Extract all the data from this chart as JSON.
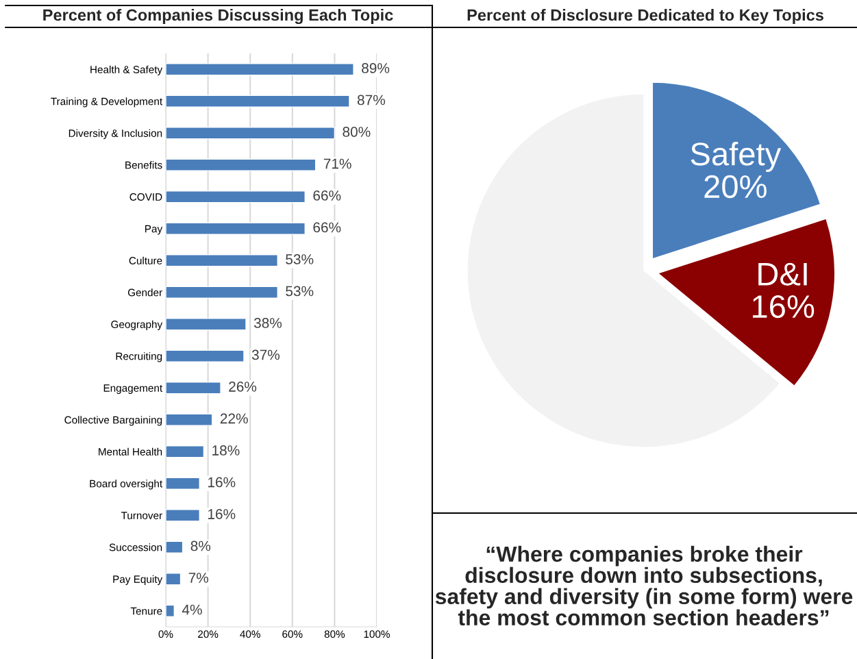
{
  "chart_data": [
    {
      "type": "bar",
      "orientation": "horizontal",
      "title": "Percent of Companies Discussing Each Topic",
      "categories": [
        "Health & Safety",
        "Training & Development",
        "Diversity & Inclusion",
        "Benefits",
        "COVID",
        "Pay",
        "Culture",
        "Gender",
        "Geography",
        "Recruiting",
        "Engagement",
        "Collective Bargaining",
        "Mental Health",
        "Board oversight",
        "Turnover",
        "Succession",
        "Pay Equity",
        "Tenure"
      ],
      "values": [
        89,
        87,
        80,
        71,
        66,
        66,
        53,
        53,
        38,
        37,
        26,
        22,
        18,
        16,
        16,
        8,
        7,
        4
      ],
      "value_labels": [
        "89%",
        "87%",
        "80%",
        "71%",
        "66%",
        "66%",
        "53%",
        "53%",
        "38%",
        "37%",
        "26%",
        "22%",
        "18%",
        "16%",
        "16%",
        "8%",
        "7%",
        "4%"
      ],
      "color": "#4a7ebb",
      "xlim": [
        0,
        100
      ],
      "xticks": [
        {
          "value": 0,
          "label": "0%"
        },
        {
          "value": 20,
          "label": "20%"
        },
        {
          "value": 40,
          "label": "40%"
        },
        {
          "value": 60,
          "label": "60%"
        },
        {
          "value": 80,
          "label": "80%"
        },
        {
          "value": 100,
          "label": "100%"
        }
      ],
      "grid": "x",
      "legend": false
    },
    {
      "type": "pie",
      "title": "Percent of Disclosure Dedicated to Key Topics",
      "categories": [
        "Safety",
        "D&I",
        null
      ],
      "values": [
        20,
        16,
        64
      ],
      "value_labels": [
        "20%",
        "16%",
        null
      ],
      "colors": [
        "#4a7ebb",
        "#8b0000",
        "#f2f2f2"
      ],
      "legend": false
    },
    {
      "type": "other",
      "annotations": [
        "“Where companies broke their disclosure down into subsections, safety and diversity (in some form) were the most common section headers”"
      ]
    }
  ]
}
